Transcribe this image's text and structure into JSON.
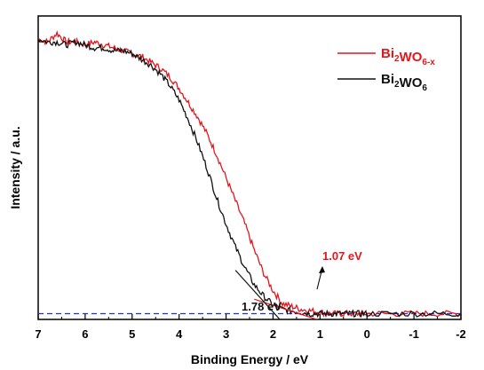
{
  "chart_data": {
    "type": "line",
    "xlabel": "Binding Energy / eV",
    "ylabel": "Intensity / a.u.",
    "xlim": [
      7,
      -2
    ],
    "ylim": [
      0,
      1.05
    ],
    "x_reversed": true,
    "x_ticks": [
      "7",
      "6",
      "5",
      "4",
      "3",
      "2",
      "1",
      "0",
      "-1",
      "-2"
    ],
    "y_ticks_shown": false,
    "grid": false,
    "legend_position": "top-right",
    "legend": [
      {
        "base": "Bi",
        "sub1": "2",
        "mid": "WO",
        "sub2": "6-x"
      },
      {
        "base": "Bi",
        "sub1": "2",
        "mid": "WO",
        "sub2": "6"
      }
    ],
    "series": [
      {
        "name": "Bi2WO6-x",
        "color": "#e3161b",
        "points": [
          [
            7.0,
            0.97
          ],
          [
            6.8,
            0.96
          ],
          [
            6.6,
            0.99
          ],
          [
            6.4,
            0.96
          ],
          [
            6.2,
            0.96
          ],
          [
            6.0,
            0.95
          ],
          [
            5.8,
            0.96
          ],
          [
            5.6,
            0.95
          ],
          [
            5.4,
            0.94
          ],
          [
            5.2,
            0.93
          ],
          [
            5.0,
            0.92
          ],
          [
            4.8,
            0.91
          ],
          [
            4.6,
            0.89
          ],
          [
            4.4,
            0.87
          ],
          [
            4.2,
            0.84
          ],
          [
            4.0,
            0.8
          ],
          [
            3.8,
            0.75
          ],
          [
            3.6,
            0.7
          ],
          [
            3.4,
            0.64
          ],
          [
            3.2,
            0.57
          ],
          [
            3.0,
            0.49
          ],
          [
            2.8,
            0.41
          ],
          [
            2.6,
            0.33
          ],
          [
            2.4,
            0.24
          ],
          [
            2.2,
            0.16
          ],
          [
            2.0,
            0.1
          ],
          [
            1.8,
            0.055
          ],
          [
            1.6,
            0.045
          ],
          [
            1.4,
            0.035
          ],
          [
            1.2,
            0.03
          ],
          [
            1.0,
            0.025
          ],
          [
            0.8,
            0.02
          ],
          [
            0.6,
            0.02
          ],
          [
            0.4,
            0.02
          ],
          [
            0.2,
            0.02
          ],
          [
            0.0,
            0.02
          ],
          [
            -0.5,
            0.02
          ],
          [
            -1.0,
            0.02
          ],
          [
            -1.5,
            0.02
          ],
          [
            -2.0,
            0.02
          ]
        ]
      },
      {
        "name": "Bi2WO6",
        "color": "#111111",
        "points": [
          [
            7.0,
            0.97
          ],
          [
            6.8,
            0.96
          ],
          [
            6.6,
            0.96
          ],
          [
            6.4,
            0.95
          ],
          [
            6.2,
            0.96
          ],
          [
            6.0,
            0.95
          ],
          [
            5.8,
            0.94
          ],
          [
            5.6,
            0.94
          ],
          [
            5.4,
            0.93
          ],
          [
            5.2,
            0.93
          ],
          [
            5.0,
            0.92
          ],
          [
            4.8,
            0.9
          ],
          [
            4.6,
            0.88
          ],
          [
            4.4,
            0.85
          ],
          [
            4.2,
            0.81
          ],
          [
            4.0,
            0.76
          ],
          [
            3.8,
            0.69
          ],
          [
            3.6,
            0.61
          ],
          [
            3.4,
            0.52
          ],
          [
            3.2,
            0.42
          ],
          [
            3.0,
            0.33
          ],
          [
            2.8,
            0.25
          ],
          [
            2.6,
            0.18
          ],
          [
            2.4,
            0.12
          ],
          [
            2.2,
            0.08
          ],
          [
            2.0,
            0.05
          ],
          [
            1.8,
            0.035
          ],
          [
            1.6,
            0.03
          ],
          [
            1.4,
            0.025
          ],
          [
            1.2,
            0.02
          ],
          [
            1.0,
            0.02
          ],
          [
            0.8,
            0.02
          ],
          [
            0.6,
            0.02
          ],
          [
            0.4,
            0.02
          ],
          [
            0.2,
            0.02
          ],
          [
            0.0,
            0.02
          ],
          [
            -0.5,
            0.02
          ],
          [
            -1.0,
            0.02
          ],
          [
            -1.5,
            0.02
          ],
          [
            -2.0,
            0.02
          ]
        ]
      }
    ],
    "baseline": {
      "y": 0.02,
      "color": "#2230d8",
      "style": "dashed"
    },
    "tangents": [
      {
        "color": "#e3161b",
        "from": [
          2.4,
          0.07
        ],
        "to": [
          0.5,
          -0.03
        ]
      },
      {
        "color": "#111111",
        "from": [
          2.8,
          0.17
        ],
        "to": [
          1.3,
          -0.1
        ]
      }
    ],
    "annotations": [
      {
        "text": "1.07 eV",
        "color": "#e3161b",
        "at_x": 1.07
      },
      {
        "text": "1.78 eV",
        "color": "#111111",
        "at_x": 1.78
      }
    ]
  }
}
